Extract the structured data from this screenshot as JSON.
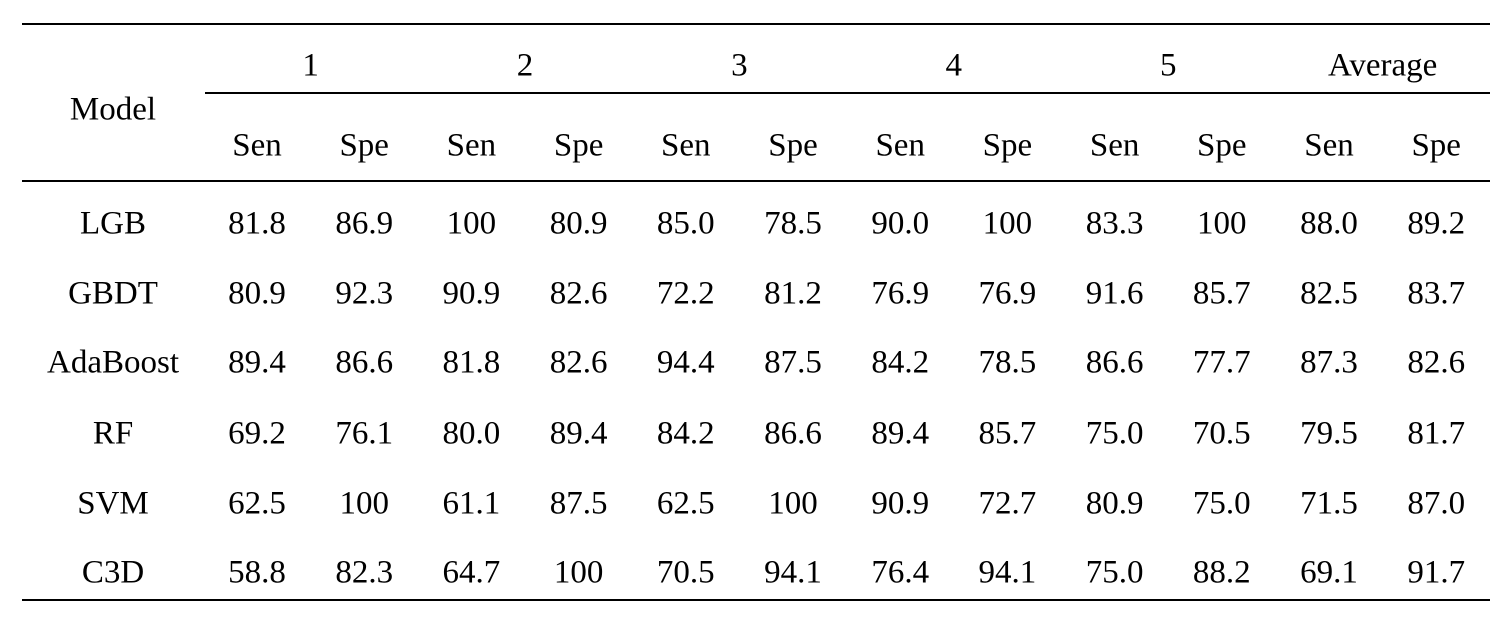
{
  "table": {
    "header": {
      "model": "Model",
      "groups": [
        "1",
        "2",
        "3",
        "4",
        "5",
        "Average"
      ],
      "subheaders": [
        "Sen",
        "Spe",
        "Sen",
        "Spe",
        "Sen",
        "Spe",
        "Sen",
        "Spe",
        "Sen",
        "Spe",
        "Sen",
        "Spe"
      ]
    },
    "rows": [
      {
        "model": "LGB",
        "cells": [
          "81.8",
          "86.9",
          "100",
          "80.9",
          "85.0",
          "78.5",
          "90.0",
          "100",
          "83.3",
          "100",
          "88.0",
          "89.2"
        ]
      },
      {
        "model": "GBDT",
        "cells": [
          "80.9",
          "92.3",
          "90.9",
          "82.6",
          "72.2",
          "81.2",
          "76.9",
          "76.9",
          "91.6",
          "85.7",
          "82.5",
          "83.7"
        ]
      },
      {
        "model": "AdaBoost",
        "cells": [
          "89.4",
          "86.6",
          "81.8",
          "82.6",
          "94.4",
          "87.5",
          "84.2",
          "78.5",
          "86.6",
          "77.7",
          "87.3",
          "82.6"
        ]
      },
      {
        "model": "RF",
        "cells": [
          "69.2",
          "76.1",
          "80.0",
          "89.4",
          "84.2",
          "86.6",
          "89.4",
          "85.7",
          "75.0",
          "70.5",
          "79.5",
          "81.7"
        ]
      },
      {
        "model": "SVM",
        "cells": [
          "62.5",
          "100",
          "61.1",
          "87.5",
          "62.5",
          "100",
          "90.9",
          "72.7",
          "80.9",
          "75.0",
          "71.5",
          "87.0"
        ]
      },
      {
        "model": "C3D",
        "cells": [
          "58.8",
          "82.3",
          "64.7",
          "100",
          "70.5",
          "94.1",
          "76.4",
          "94.1",
          "75.0",
          "88.2",
          "69.1",
          "91.7"
        ]
      }
    ]
  }
}
